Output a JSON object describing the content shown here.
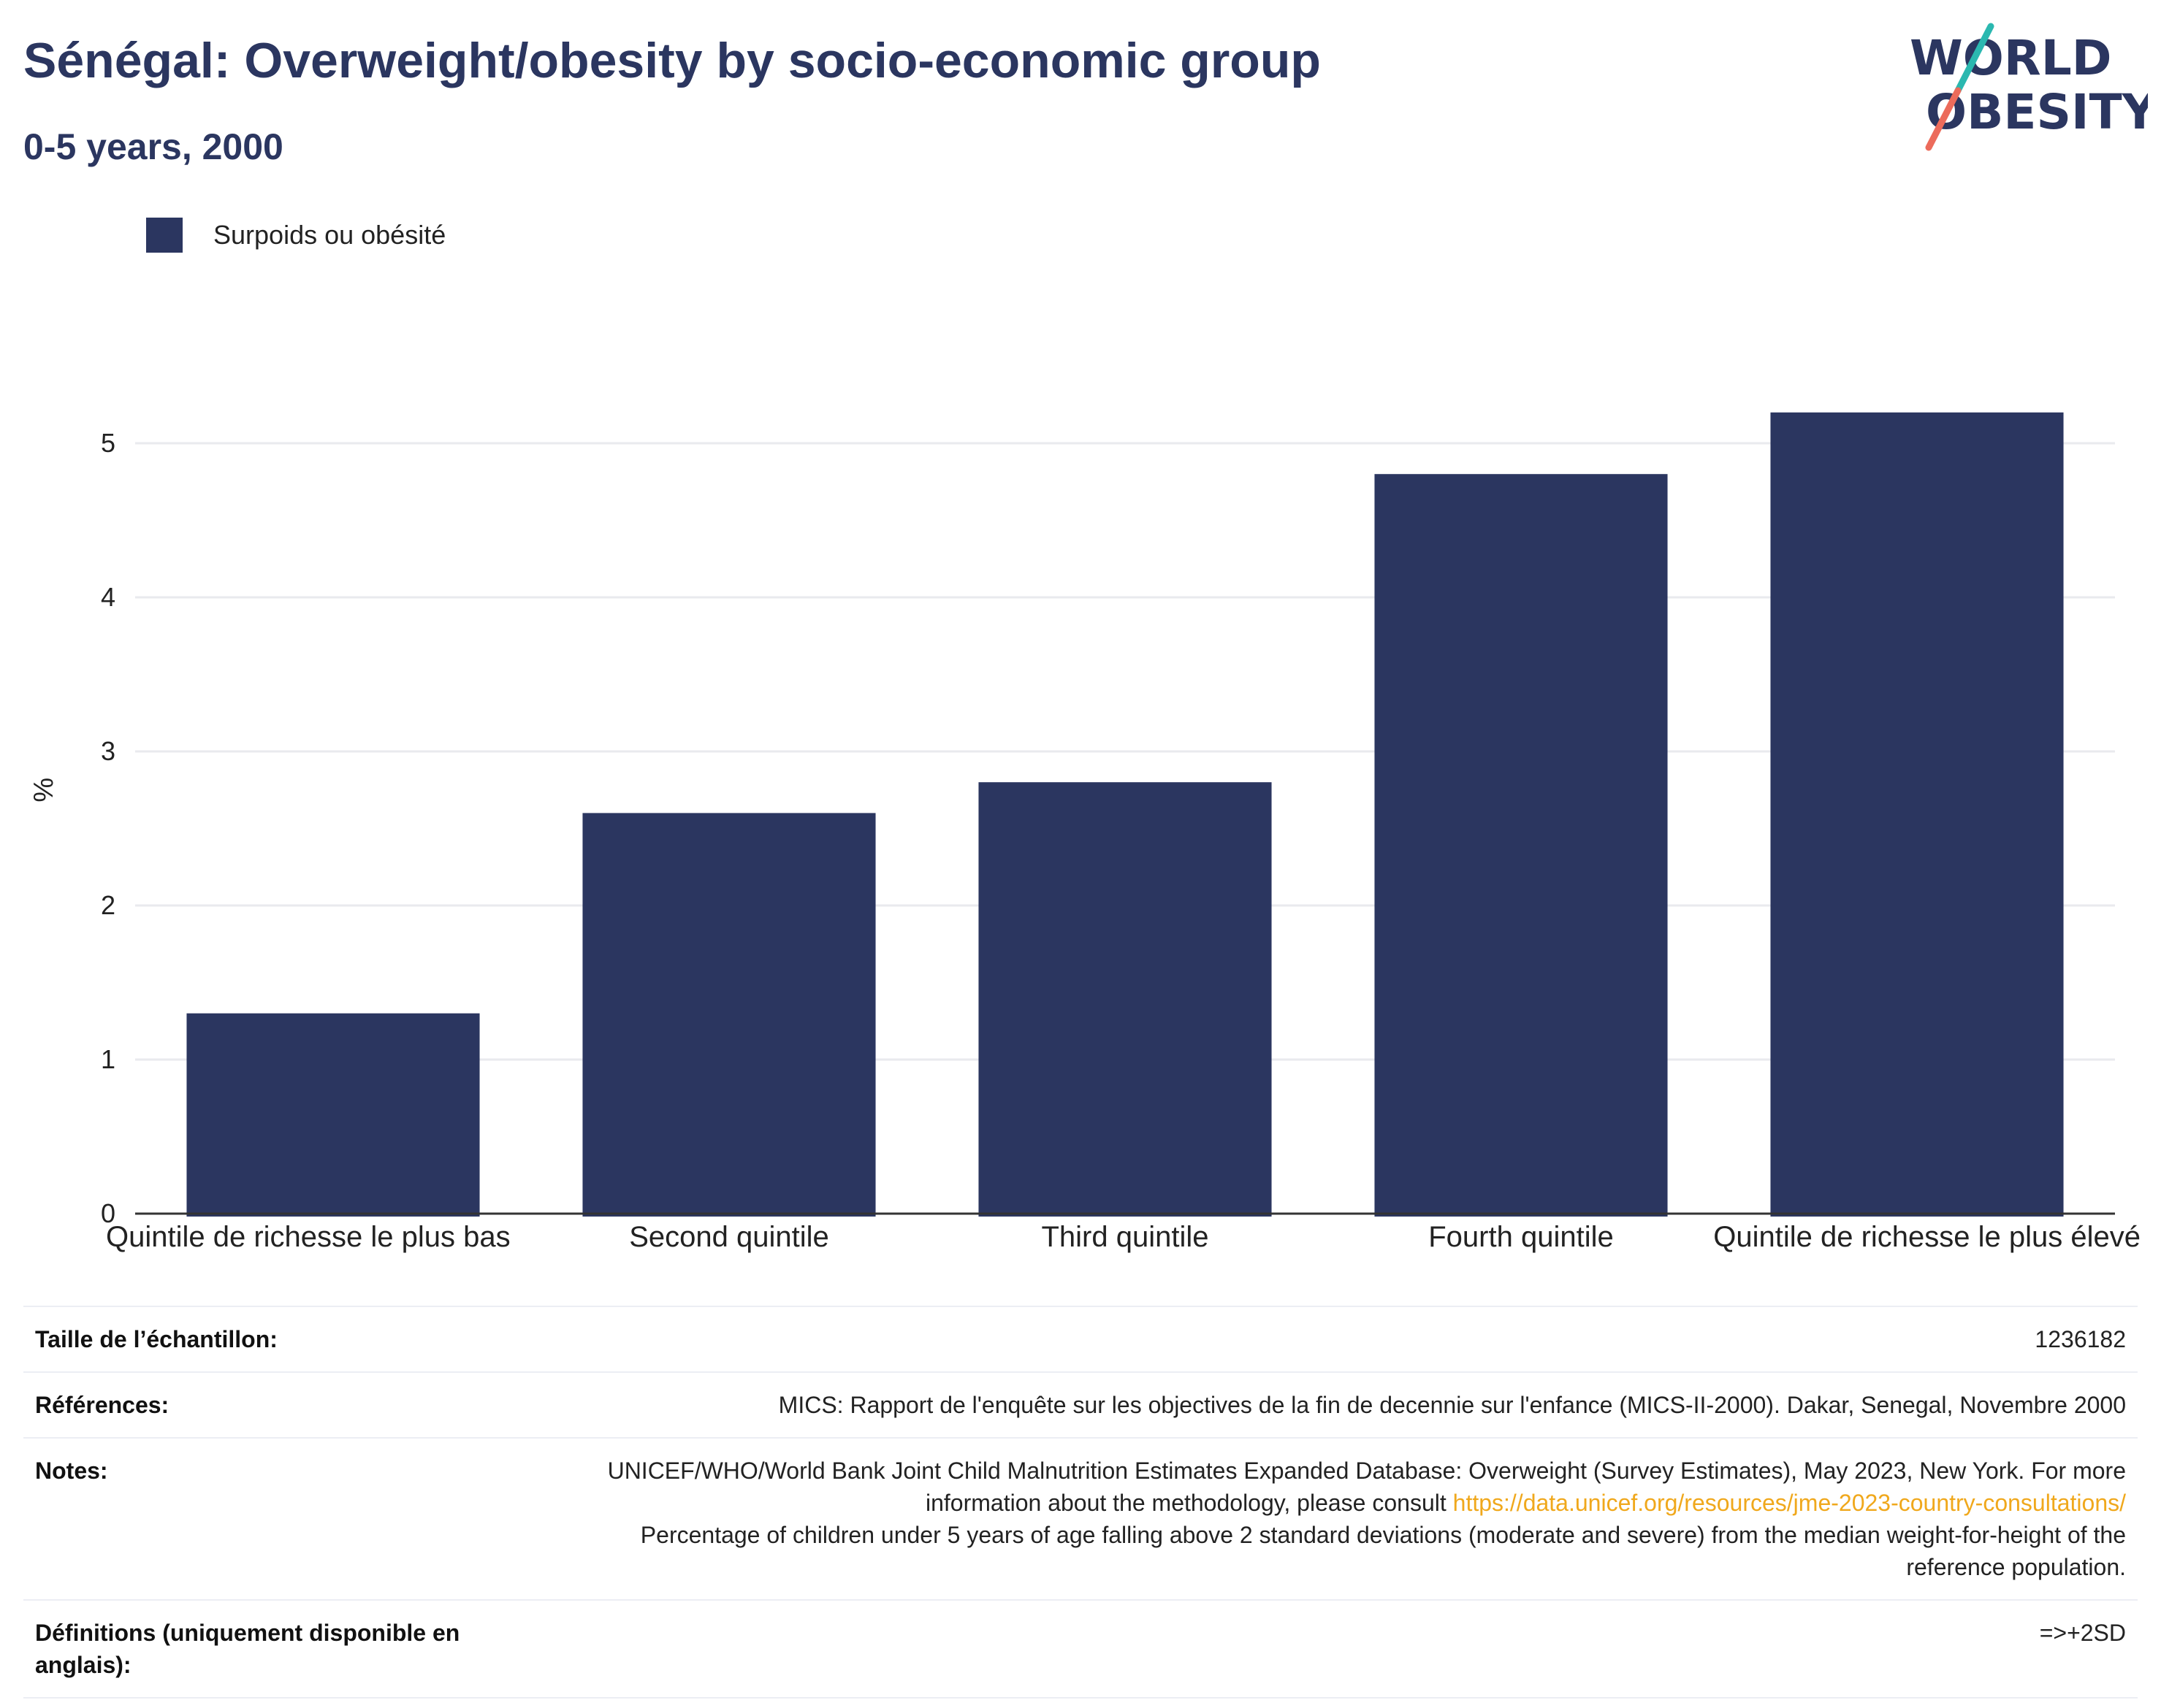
{
  "header": {
    "title": "Sénégal: Overweight/obesity by socio-economic group",
    "subtitle": "0-5 years, 2000",
    "logo_line1": "WORLD",
    "logo_line2": "OBESITY"
  },
  "colors": {
    "bar": "#2b3660",
    "title": "#2b3660",
    "grid": "#e9eaee",
    "axis": "#333333",
    "link": "#f0a81c",
    "logo_teal": "#2bb8b0",
    "logo_coral": "#ec6b5b"
  },
  "chart_data": {
    "type": "bar",
    "categories": [
      "Quintile de richesse le plus bas",
      "Second quintile",
      "Third quintile",
      "Fourth quintile",
      "Quintile de richesse le plus élevé"
    ],
    "series": [
      {
        "name": "Surpoids ou obésité",
        "values": [
          1.3,
          2.6,
          2.8,
          4.8,
          5.2
        ]
      }
    ],
    "ylabel": "%",
    "xlabel": "",
    "ylim": [
      0,
      5.5
    ],
    "yticks": [
      0,
      1,
      2,
      3,
      4,
      5
    ],
    "grid": true,
    "legend": "top-left"
  },
  "table": {
    "sample_label": "Taille de l’échantillon:",
    "sample_value": "1236182",
    "refs_label": "Références:",
    "refs_value": "MICS: Rapport de l'enquête sur les objectives de la fin de decennie sur l'enfance (MICS-II-2000). Dakar, Senegal, Novembre 2000",
    "notes_label": "Notes:",
    "notes_line1": "UNICEF/WHO/World Bank Joint Child Malnutrition Estimates Expanded Database: Overweight (Survey Estimates), May 2023, New",
    "notes_line2_prefix": "York. For more information about the methodology, please consult",
    "notes_link": "https://data.unicef.org/resources/jme-2023-country-consultations/",
    "notes_line3": "Percentage of children under 5 years of age falling above 2 standard deviations (moderate and severe) from the median weight-for-height of the reference population.",
    "defs_label": "Définitions (uniquement disponible en anglais):",
    "defs_value": "=>+2SD"
  }
}
